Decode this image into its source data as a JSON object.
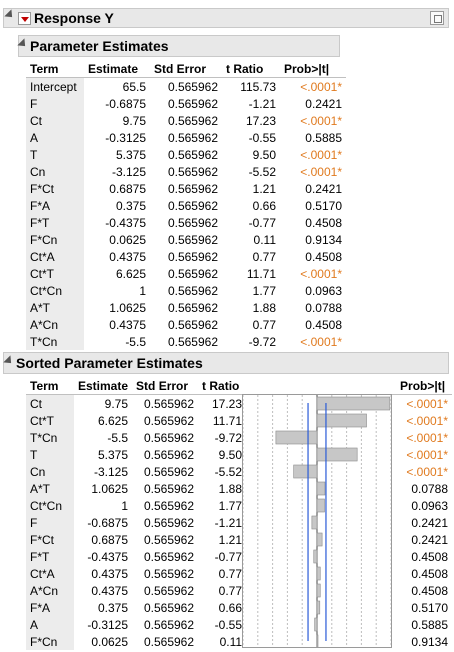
{
  "report_title": "Response Y",
  "param_section": {
    "title": "Parameter Estimates",
    "columns": [
      "Term",
      "Estimate",
      "Std Error",
      "t Ratio",
      "Prob>|t|"
    ],
    "rows": [
      {
        "term": "Intercept",
        "estimate": "65.5",
        "stderr": "0.565962",
        "t": "115.73",
        "p": "<.0001*",
        "sig": true
      },
      {
        "term": "F",
        "estimate": "-0.6875",
        "stderr": "0.565962",
        "t": "-1.21",
        "p": "0.2421",
        "sig": false
      },
      {
        "term": "Ct",
        "estimate": "9.75",
        "stderr": "0.565962",
        "t": "17.23",
        "p": "<.0001*",
        "sig": true
      },
      {
        "term": "A",
        "estimate": "-0.3125",
        "stderr": "0.565962",
        "t": "-0.55",
        "p": "0.5885",
        "sig": false
      },
      {
        "term": "T",
        "estimate": "5.375",
        "stderr": "0.565962",
        "t": "9.50",
        "p": "<.0001*",
        "sig": true
      },
      {
        "term": "Cn",
        "estimate": "-3.125",
        "stderr": "0.565962",
        "t": "-5.52",
        "p": "<.0001*",
        "sig": true
      },
      {
        "term": "F*Ct",
        "estimate": "0.6875",
        "stderr": "0.565962",
        "t": "1.21",
        "p": "0.2421",
        "sig": false
      },
      {
        "term": "F*A",
        "estimate": "0.375",
        "stderr": "0.565962",
        "t": "0.66",
        "p": "0.5170",
        "sig": false
      },
      {
        "term": "F*T",
        "estimate": "-0.4375",
        "stderr": "0.565962",
        "t": "-0.77",
        "p": "0.4508",
        "sig": false
      },
      {
        "term": "F*Cn",
        "estimate": "0.0625",
        "stderr": "0.565962",
        "t": "0.11",
        "p": "0.9134",
        "sig": false
      },
      {
        "term": "Ct*A",
        "estimate": "0.4375",
        "stderr": "0.565962",
        "t": "0.77",
        "p": "0.4508",
        "sig": false
      },
      {
        "term": "Ct*T",
        "estimate": "6.625",
        "stderr": "0.565962",
        "t": "11.71",
        "p": "<.0001*",
        "sig": true
      },
      {
        "term": "Ct*Cn",
        "estimate": "1",
        "stderr": "0.565962",
        "t": "1.77",
        "p": "0.0963",
        "sig": false
      },
      {
        "term": "A*T",
        "estimate": "1.0625",
        "stderr": "0.565962",
        "t": "1.88",
        "p": "0.0788",
        "sig": false
      },
      {
        "term": "A*Cn",
        "estimate": "0.4375",
        "stderr": "0.565962",
        "t": "0.77",
        "p": "0.4508",
        "sig": false
      },
      {
        "term": "T*Cn",
        "estimate": "-5.5",
        "stderr": "0.565962",
        "t": "-9.72",
        "p": "<.0001*",
        "sig": true
      }
    ]
  },
  "sorted_section": {
    "title": "Sorted Parameter Estimates",
    "columns": [
      "Term",
      "Estimate",
      "Std Error",
      "t Ratio",
      "Prob>|t|"
    ],
    "rows": [
      {
        "term": "Ct",
        "estimate": "9.75",
        "stderr": "0.565962",
        "t": "17.23",
        "p": "<.0001*",
        "sig": true
      },
      {
        "term": "Ct*T",
        "estimate": "6.625",
        "stderr": "0.565962",
        "t": "11.71",
        "p": "<.0001*",
        "sig": true
      },
      {
        "term": "T*Cn",
        "estimate": "-5.5",
        "stderr": "0.565962",
        "t": "-9.72",
        "p": "<.0001*",
        "sig": true
      },
      {
        "term": "T",
        "estimate": "5.375",
        "stderr": "0.565962",
        "t": "9.50",
        "p": "<.0001*",
        "sig": true
      },
      {
        "term": "Cn",
        "estimate": "-3.125",
        "stderr": "0.565962",
        "t": "-5.52",
        "p": "<.0001*",
        "sig": true
      },
      {
        "term": "A*T",
        "estimate": "1.0625",
        "stderr": "0.565962",
        "t": "1.88",
        "p": "0.0788",
        "sig": false
      },
      {
        "term": "Ct*Cn",
        "estimate": "1",
        "stderr": "0.565962",
        "t": "1.77",
        "p": "0.0963",
        "sig": false
      },
      {
        "term": "F",
        "estimate": "-0.6875",
        "stderr": "0.565962",
        "t": "-1.21",
        "p": "0.2421",
        "sig": false
      },
      {
        "term": "F*Ct",
        "estimate": "0.6875",
        "stderr": "0.565962",
        "t": "1.21",
        "p": "0.2421",
        "sig": false
      },
      {
        "term": "F*T",
        "estimate": "-0.4375",
        "stderr": "0.565962",
        "t": "-0.77",
        "p": "0.4508",
        "sig": false
      },
      {
        "term": "Ct*A",
        "estimate": "0.4375",
        "stderr": "0.565962",
        "t": "0.77",
        "p": "0.4508",
        "sig": false
      },
      {
        "term": "A*Cn",
        "estimate": "0.4375",
        "stderr": "0.565962",
        "t": "0.77",
        "p": "0.4508",
        "sig": false
      },
      {
        "term": "F*A",
        "estimate": "0.375",
        "stderr": "0.565962",
        "t": "0.66",
        "p": "0.5170",
        "sig": false
      },
      {
        "term": "A",
        "estimate": "-0.3125",
        "stderr": "0.565962",
        "t": "-0.55",
        "p": "0.5885",
        "sig": false
      },
      {
        "term": "F*Cn",
        "estimate": "0.0625",
        "stderr": "0.565962",
        "t": "0.11",
        "p": "0.9134",
        "sig": false
      }
    ]
  },
  "chart_data": {
    "type": "bar",
    "orientation": "horizontal",
    "categories": [
      "Ct",
      "Ct*T",
      "T*Cn",
      "T",
      "Cn",
      "A*T",
      "Ct*Cn",
      "F",
      "F*Ct",
      "F*T",
      "Ct*A",
      "A*Cn",
      "F*A",
      "A",
      "F*Cn"
    ],
    "values": [
      17.23,
      11.71,
      -9.72,
      9.5,
      -5.52,
      1.88,
      1.77,
      -1.21,
      1.21,
      -0.77,
      0.77,
      0.77,
      0.66,
      -0.55,
      0.11
    ],
    "xlim": [
      -17.5,
      17.5
    ],
    "reference_lines": [
      -2.12,
      2.12
    ],
    "grid_ticks": [
      -17.5,
      -14,
      -10.5,
      -7,
      -3.5,
      3.5,
      7,
      10.5,
      14,
      17.5
    ],
    "bar_color": "#c7c7c7",
    "reference_color": "#2a5bd7"
  },
  "colors": {
    "significant": "#e07a1f",
    "header_bg": "#e8e8e8",
    "term_bg": "#ececec"
  },
  "icons": {
    "collapse": "disclosure-triangle-icon",
    "menu": "red-triangle-menu-icon",
    "save": "save-report-icon"
  }
}
